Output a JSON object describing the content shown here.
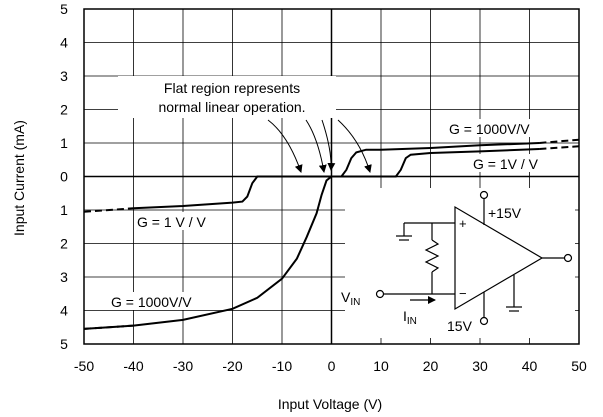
{
  "chart_data": {
    "type": "line",
    "xlabel": "Input Voltage (V)",
    "ylabel": "Input Current (mA)",
    "xlim": [
      -50,
      50
    ],
    "ylim": [
      -5,
      5
    ],
    "grid": true,
    "x_ticks": [
      "-50",
      "-40",
      "-30",
      "-20",
      "-10",
      "0",
      "10",
      "20",
      "30",
      "40",
      "50"
    ],
    "y_ticks": [
      "5",
      "4",
      "3",
      "2",
      "1",
      "0",
      "1",
      "2",
      "3",
      "4",
      "5"
    ],
    "series": [
      {
        "name": "G = 1000V/V",
        "points": [
          [
            -50,
            -4.55
          ],
          [
            -40,
            -4.45
          ],
          [
            -30,
            -4.28
          ],
          [
            -20,
            -3.95
          ],
          [
            -15,
            -3.62
          ],
          [
            -10,
            -3.05
          ],
          [
            -7,
            -2.45
          ],
          [
            -5,
            -1.8
          ],
          [
            -3,
            -1.1
          ],
          [
            -2,
            -0.55
          ],
          [
            -1,
            -0.12
          ],
          [
            0,
            0
          ],
          [
            2,
            0
          ],
          [
            3,
            0.2
          ],
          [
            4,
            0.55
          ],
          [
            5,
            0.72
          ],
          [
            7,
            0.8
          ],
          [
            10,
            0.8
          ],
          [
            20,
            0.85
          ],
          [
            30,
            0.93
          ],
          [
            42,
            1.0
          ]
        ],
        "dashed_points": [
          [
            -50,
            -4.55
          ],
          [
            -40,
            -4.45
          ]
        ],
        "dashed_points_right": [
          [
            42,
            1.0
          ],
          [
            50,
            1.1
          ]
        ]
      },
      {
        "name": "G = 1V / V",
        "points": [
          [
            -40,
            -0.95
          ],
          [
            -30,
            -0.88
          ],
          [
            -20,
            -0.78
          ],
          [
            -18,
            -0.75
          ],
          [
            -17,
            -0.6
          ],
          [
            -16,
            -0.2
          ],
          [
            -15,
            0
          ],
          [
            0,
            0
          ],
          [
            13,
            0
          ],
          [
            14,
            0.2
          ],
          [
            15,
            0.55
          ],
          [
            16,
            0.65
          ],
          [
            20,
            0.7
          ],
          [
            30,
            0.75
          ],
          [
            42,
            0.82
          ]
        ],
        "dashed_points": [
          [
            -50,
            -1.05
          ],
          [
            -40,
            -0.95
          ]
        ],
        "dashed_points_right": [
          [
            42,
            0.82
          ],
          [
            50,
            0.9
          ]
        ]
      }
    ],
    "annotations": {
      "flat_region_line1": "Flat region represents",
      "flat_region_line2": "normal linear operation.",
      "label_g1000_upper": "G = 1000V/V",
      "label_g1_upper": "G = 1V / V",
      "label_g1_lower": "G = 1 V / V",
      "label_g1000_lower": "G = 1000V/V"
    },
    "inset": {
      "vplus": "+15V",
      "vminus": "15V",
      "plus_sign": "+",
      "minus_sign": "−",
      "vin_main": "V",
      "vin_sub": "IN",
      "iin_main": "I",
      "iin_sub": "IN"
    }
  }
}
